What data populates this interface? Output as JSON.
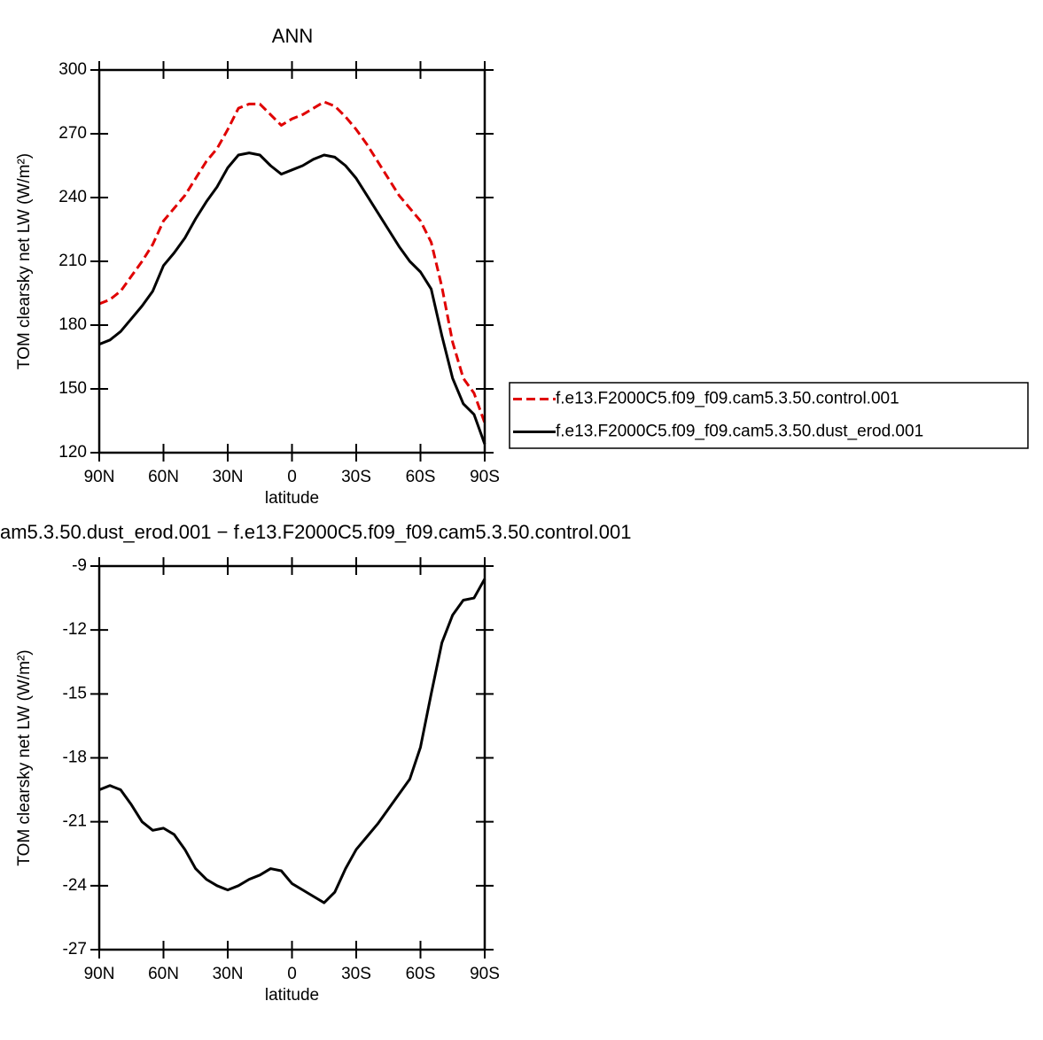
{
  "chart_data": [
    {
      "type": "line",
      "title": "ANN",
      "xlabel": "latitude",
      "ylabel": "TOM clearsky net LW (W/m²)",
      "x": [
        90,
        85,
        80,
        75,
        70,
        65,
        60,
        55,
        50,
        45,
        40,
        35,
        30,
        25,
        20,
        15,
        10,
        5,
        0,
        -5,
        -10,
        -15,
        -20,
        -25,
        -30,
        -35,
        -40,
        -45,
        -50,
        -55,
        -60,
        -65,
        -70,
        -75,
        -80,
        -85,
        -90
      ],
      "xlim": [
        90,
        -90
      ],
      "xticks": [
        {
          "value": 90,
          "label": "90N"
        },
        {
          "value": 60,
          "label": "60N"
        },
        {
          "value": 30,
          "label": "30N"
        },
        0,
        {
          "value": -30,
          "label": "30S"
        },
        {
          "value": -60,
          "label": "60S"
        },
        {
          "value": -90,
          "label": "90S"
        }
      ],
      "ylim": [
        120,
        300
      ],
      "yticks": [
        120,
        150,
        180,
        210,
        240,
        270,
        300
      ],
      "legend": "right",
      "series": [
        {
          "name": "f.e13.F2000C5.f09_f09.cam5.3.50.control.001",
          "color": "#e00000",
          "linestyle": "dashed",
          "values": [
            190,
            192,
            196,
            203,
            210,
            218,
            229,
            235,
            241,
            249,
            257,
            263,
            272,
            282,
            284,
            284,
            279,
            274,
            277,
            279,
            282,
            285,
            283,
            278,
            272,
            265,
            257,
            249,
            241,
            235,
            229,
            219,
            198,
            172,
            155,
            148,
            134
          ]
        },
        {
          "name": "f.e13.F2000C5.f09_f09.cam5.3.50.dust_erod.001",
          "color": "#000000",
          "linestyle": "solid",
          "values": [
            171,
            173,
            177,
            183,
            189,
            196,
            208,
            214,
            221,
            230,
            238,
            245,
            254,
            260,
            261,
            260,
            255,
            251,
            253,
            255,
            258,
            260,
            259,
            255,
            249,
            241,
            233,
            225,
            217,
            210,
            205,
            197,
            175,
            155,
            143,
            138,
            124
          ]
        }
      ]
    },
    {
      "type": "line",
      "title": "am5.3.50.dust_erod.001 − f.e13.F2000C5.f09_f09.cam5.3.50.control.001",
      "xlabel": "latitude",
      "ylabel": "TOM clearsky net LW (W/m²)",
      "x": [
        90,
        85,
        80,
        75,
        70,
        65,
        60,
        55,
        50,
        45,
        40,
        35,
        30,
        25,
        20,
        15,
        10,
        5,
        0,
        -5,
        -10,
        -15,
        -20,
        -25,
        -30,
        -35,
        -40,
        -45,
        -50,
        -55,
        -60,
        -65,
        -70,
        -75,
        -80,
        -85,
        -90
      ],
      "xlim": [
        90,
        -90
      ],
      "xticks": [
        {
          "value": 90,
          "label": "90N"
        },
        {
          "value": 60,
          "label": "60N"
        },
        {
          "value": 30,
          "label": "30N"
        },
        0,
        {
          "value": -30,
          "label": "30S"
        },
        {
          "value": -60,
          "label": "60S"
        },
        {
          "value": -90,
          "label": "90S"
        }
      ],
      "ylim": [
        -27,
        -9
      ],
      "yticks": [
        -27,
        -24,
        -21,
        -18,
        -15,
        -12,
        -9
      ],
      "series": [
        {
          "color": "#000000",
          "linestyle": "solid",
          "values": [
            -19.5,
            -19.3,
            -19.5,
            -20.2,
            -21.0,
            -21.4,
            -21.3,
            -21.6,
            -22.3,
            -23.2,
            -23.7,
            -24.0,
            -24.2,
            -24.0,
            -23.7,
            -23.5,
            -23.2,
            -23.3,
            -23.9,
            -24.2,
            -24.5,
            -24.8,
            -24.3,
            -23.2,
            -22.3,
            -21.7,
            -21.1,
            -20.4,
            -19.7,
            -19.0,
            -17.5,
            -15.0,
            -12.6,
            -11.3,
            -10.6,
            -10.5,
            -9.6
          ]
        }
      ]
    }
  ]
}
